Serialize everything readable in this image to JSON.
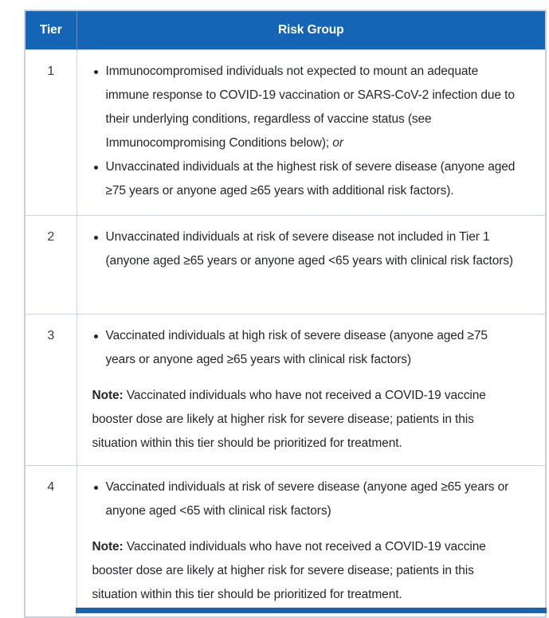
{
  "table": {
    "header": {
      "tier_label": "Tier",
      "risk_group_label": "Risk Group"
    },
    "colors": {
      "header_bg": "#1565b6",
      "header_text": "#ffffff",
      "header_divider": "#5b93cf",
      "cell_border": "#ccd5dd",
      "outer_border": "#c9d2da",
      "body_text": "#23272c"
    },
    "rows": [
      {
        "tier": "1",
        "bullet1_text": "Immunocompromised individuals not expected to mount an adequate immune response to COVID-19 vaccination or SARS-CoV-2 infection due to their underlying conditions, regardless of vaccine status (see Immunocompromising Conditions below); ",
        "bullet1_italic_suffix": "or",
        "bullet2_text": "Unvaccinated individuals at the highest risk of severe disease (anyone aged ≥75 years or anyone aged ≥65 years with additional risk factors)."
      },
      {
        "tier": "2",
        "bullet1_text": "Unvaccinated individuals at risk of severe disease not included in Tier 1 (anyone aged ≥65 years or anyone aged <65 years with clinical risk factors)"
      },
      {
        "tier": "3",
        "bullet1_text": "Vaccinated individuals at high risk of severe disease (anyone aged ≥75 years or anyone aged ≥65 years with clinical risk factors)",
        "note_label": "Note:",
        "note_text": " Vaccinated individuals who have not received a COVID-19 vaccine booster dose are likely at higher risk for severe disease; patients in this situation within this tier should be prioritized for treatment."
      },
      {
        "tier": "4",
        "bullet1_text": "Vaccinated individuals at risk of severe disease (anyone aged ≥65 years or anyone aged <65 with clinical risk factors)",
        "note_label": "Note:",
        "note_text": " Vaccinated individuals who have not received a COVID-19 vaccine booster dose are likely at higher risk for severe disease; patients in this situation within this tier should be prioritized for treatment."
      }
    ]
  }
}
